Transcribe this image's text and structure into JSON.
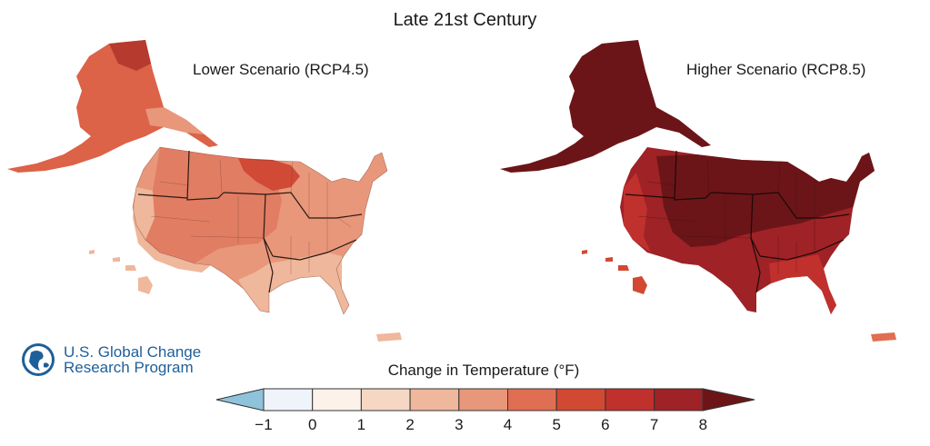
{
  "title": "Late 21st Century",
  "panels": [
    {
      "label": "Lower Scenario (RCP4.5)"
    },
    {
      "label": "Higher Scenario (RCP8.5)"
    }
  ],
  "logo": {
    "line1": "U.S. Global Change",
    "line2": "Research Program",
    "icon": "globe-icon"
  },
  "legend": {
    "title": "Change in Temperature (°F)",
    "ticks": [
      "−1",
      "0",
      "1",
      "2",
      "3",
      "4",
      "5",
      "6",
      "7",
      "8"
    ],
    "colors": [
      "#8fc3dc",
      "#eef4fa",
      "#fcf2ea",
      "#f6d7c4",
      "#efb79b",
      "#e8977a",
      "#e06e52",
      "#d24933",
      "#c0302d",
      "#9e2226",
      "#6b1518"
    ]
  }
}
